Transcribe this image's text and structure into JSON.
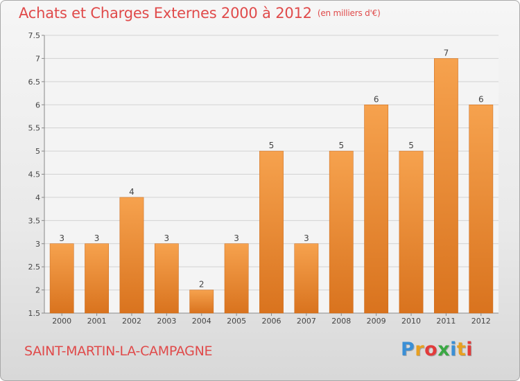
{
  "title": "Achats et Charges Externes 2000 à 2012",
  "unit_label": "(en milliers d'€)",
  "place_name": "SAINT-MARTIN-LA-CAMPAGNE",
  "logo": {
    "text": "Proxiti",
    "letters": [
      {
        "ch": "P",
        "color": "#3a8fd6"
      },
      {
        "ch": "r",
        "color": "#e8a020"
      },
      {
        "ch": "o",
        "color": "#e23b3b"
      },
      {
        "ch": "x",
        "color": "#3aa844"
      },
      {
        "ch": "i",
        "color": "#3a8fd6"
      },
      {
        "ch": "t",
        "color": "#e8a020"
      },
      {
        "ch": "i",
        "color": "#e23b3b"
      }
    ]
  },
  "colors": {
    "title": "#e04a4a",
    "bar_top": "#f6a24e",
    "bar_bottom": "#d9731e",
    "grid": "#d2d2d2",
    "axis": "#888888"
  },
  "chart_data": {
    "type": "bar",
    "categories": [
      "2000",
      "2001",
      "2002",
      "2003",
      "2004",
      "2005",
      "2006",
      "2007",
      "2008",
      "2009",
      "2010",
      "2011",
      "2012"
    ],
    "values": [
      3,
      3,
      4,
      3,
      2,
      3,
      5,
      3,
      5,
      6,
      5,
      7,
      6
    ],
    "data_labels": [
      "3",
      "3",
      "4",
      "3",
      "2",
      "3",
      "5",
      "3",
      "5",
      "6",
      "5",
      "7",
      "6"
    ],
    "ylim": [
      1.5,
      7.5
    ],
    "yticks": [
      1.5,
      2,
      2.5,
      3,
      3.5,
      4,
      4.5,
      5,
      5.5,
      6,
      6.5,
      7,
      7.5
    ],
    "ytick_labels": [
      "1.5",
      "2",
      "2.5",
      "3",
      "3.5",
      "4",
      "4.5",
      "5",
      "5.5",
      "6",
      "6.5",
      "7",
      "7.5"
    ],
    "grid": true,
    "legend": "none",
    "xlabel": "",
    "ylabel": ""
  }
}
